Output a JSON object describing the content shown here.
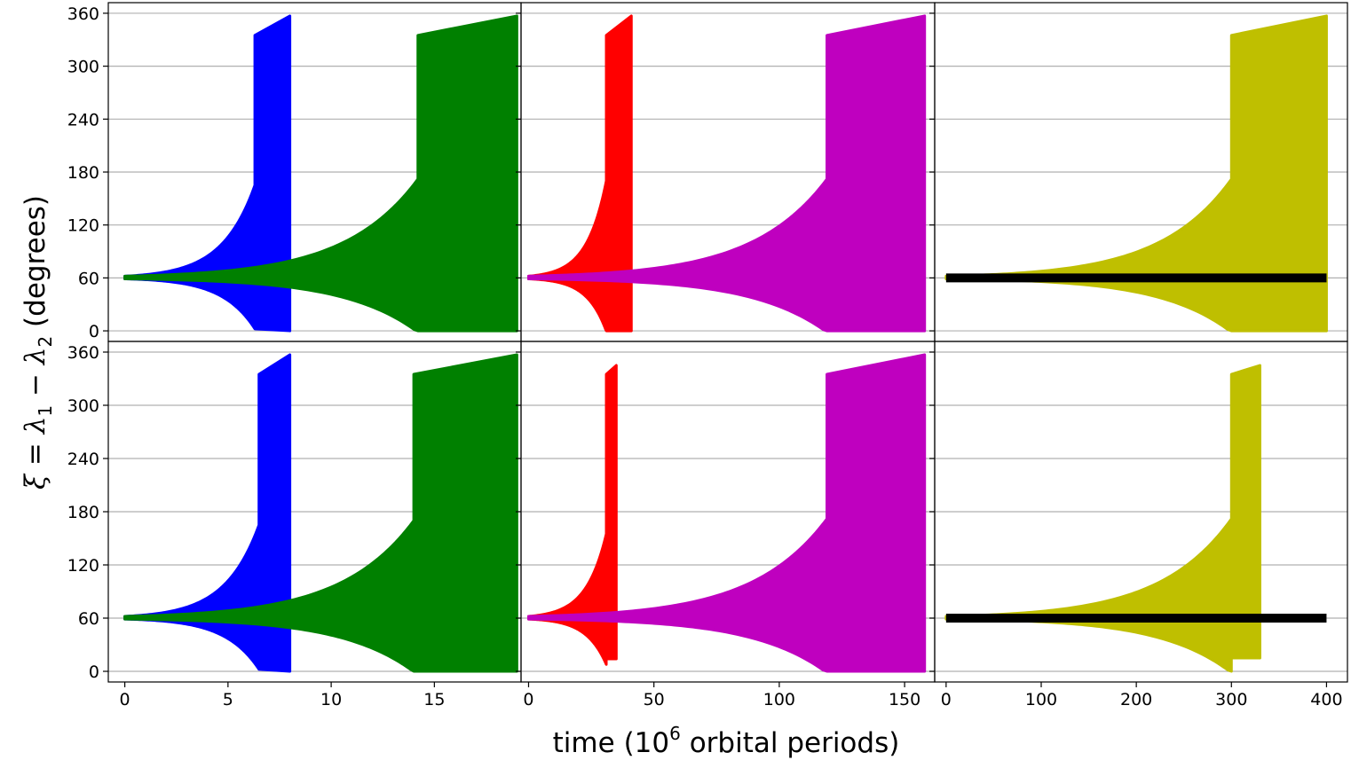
{
  "colors": {
    "blue": "#0000ff",
    "green": "#008000",
    "red": "#ff0000",
    "magenta": "#bf00bf",
    "olive": "#bfbf00",
    "black": "#000000",
    "grid": "#b0b0b0"
  },
  "figure": {
    "ylabel": {
      "xi": "ξ",
      "eq": " = ",
      "lam": "λ",
      "sub1": "1",
      "minus": " − ",
      "sub2": "2",
      "units": " (degrees)"
    },
    "xlabel": {
      "pre": "time ",
      "base": "(10",
      "exp": "6",
      "post": " orbital periods)"
    }
  },
  "chart_data": [
    {
      "type": "scatter",
      "row": "top",
      "col": 1,
      "xlim": [
        -0.8,
        19.2
      ],
      "ylim": [
        -12,
        372
      ],
      "xticks": [
        "0",
        "5",
        "10",
        "15"
      ],
      "xtick_values": [
        0,
        5,
        10,
        15
      ],
      "yticks": [
        "0",
        "60",
        "120",
        "180",
        "240",
        "300",
        "360"
      ],
      "ytick_values": [
        0,
        60,
        120,
        180,
        240,
        300,
        360
      ],
      "grid": "horizontal",
      "series": [
        {
          "color": "blue",
          "t_end": 8.0,
          "t_break": 6.3,
          "half_width_at_break": 105,
          "break_top": 335,
          "end_top": 357,
          "end_bottom": 0
        },
        {
          "color": "green",
          "t_end": 19.0,
          "t_break": 14.2,
          "half_width_at_break": 112,
          "break_top": 335,
          "end_top": 357,
          "end_bottom": 0
        }
      ]
    },
    {
      "type": "scatter",
      "row": "top",
      "col": 2,
      "xlim": [
        -3,
        162
      ],
      "ylim": [
        -12,
        372
      ],
      "xticks": [
        "0",
        "50",
        "100",
        "150"
      ],
      "xtick_values": [
        0,
        50,
        100,
        150
      ],
      "yticks": [],
      "ytick_values": [
        0,
        60,
        120,
        180,
        240,
        300,
        360
      ],
      "grid": "horizontal",
      "series": [
        {
          "color": "red",
          "t_end": 41,
          "t_break": 31,
          "half_width_at_break": 110,
          "break_top": 335,
          "end_top": 357,
          "end_bottom": 0
        },
        {
          "color": "magenta",
          "t_end": 158,
          "t_break": 119,
          "half_width_at_break": 112,
          "break_top": 335,
          "end_top": 357,
          "end_bottom": 0
        }
      ]
    },
    {
      "type": "scatter",
      "row": "top",
      "col": 3,
      "xlim": [
        -12,
        422
      ],
      "ylim": [
        -12,
        372
      ],
      "xticks": [
        "0",
        "100",
        "200",
        "300",
        "400"
      ],
      "xtick_values": [
        0,
        100,
        200,
        300,
        400
      ],
      "yticks": [],
      "ytick_values": [
        0,
        60,
        120,
        180,
        240,
        300,
        360
      ],
      "grid": "horizontal",
      "series": [
        {
          "color": "olive",
          "t_end": 400,
          "t_break": 300,
          "half_width_at_break": 112,
          "break_top": 335,
          "end_top": 357,
          "end_bottom": 0
        },
        {
          "color": "black",
          "t_end": 400,
          "flat_y": 60,
          "flat_half_width": 2
        }
      ]
    },
    {
      "type": "scatter",
      "row": "bottom",
      "col": 1,
      "xlim": [
        -0.8,
        19.2
      ],
      "ylim": [
        -12,
        372
      ],
      "xticks": [
        "0",
        "5",
        "10",
        "15"
      ],
      "xtick_values": [
        0,
        5,
        10,
        15
      ],
      "yticks": [
        "0",
        "60",
        "120",
        "180",
        "240",
        "300",
        "360"
      ],
      "ytick_values": [
        0,
        60,
        120,
        180,
        240,
        300,
        360
      ],
      "grid": "horizontal",
      "series": [
        {
          "color": "blue",
          "t_end": 8.0,
          "t_break": 6.5,
          "half_width_at_break": 105,
          "break_top": 335,
          "end_top": 357,
          "end_bottom": 0
        },
        {
          "color": "green",
          "t_end": 19.0,
          "t_break": 14.0,
          "half_width_at_break": 110,
          "break_top": 335,
          "end_top": 357,
          "end_bottom": 0
        }
      ]
    },
    {
      "type": "scatter",
      "row": "bottom",
      "col": 2,
      "xlim": [
        -3,
        162
      ],
      "ylim": [
        -12,
        372
      ],
      "xticks": [
        "0",
        "50",
        "100",
        "150"
      ],
      "xtick_values": [
        0,
        50,
        100,
        150
      ],
      "yticks": [],
      "ytick_values": [
        0,
        60,
        120,
        180,
        240,
        300,
        360
      ],
      "grid": "horizontal",
      "series": [
        {
          "color": "red",
          "t_end": 35,
          "t_break": 31,
          "half_width_at_break": 95,
          "break_top": 335,
          "end_top": 345,
          "end_bottom": 14
        },
        {
          "color": "magenta",
          "t_end": 158,
          "t_break": 119,
          "half_width_at_break": 112,
          "break_top": 335,
          "end_top": 357,
          "end_bottom": 0
        }
      ]
    },
    {
      "type": "scatter",
      "row": "bottom",
      "col": 3,
      "xlim": [
        -12,
        422
      ],
      "ylim": [
        -12,
        372
      ],
      "xticks": [
        "0",
        "100",
        "200",
        "300",
        "400"
      ],
      "xtick_values": [
        0,
        100,
        200,
        300,
        400
      ],
      "yticks": [],
      "ytick_values": [
        0,
        60,
        120,
        180,
        240,
        300,
        360
      ],
      "grid": "horizontal",
      "series": [
        {
          "color": "olive",
          "t_end": 330,
          "t_break": 300,
          "half_width_at_break": 112,
          "break_top": 335,
          "end_top": 345,
          "end_bottom": 15
        },
        {
          "color": "black",
          "t_end": 400,
          "flat_y": 60,
          "flat_half_width": 2
        }
      ]
    }
  ]
}
